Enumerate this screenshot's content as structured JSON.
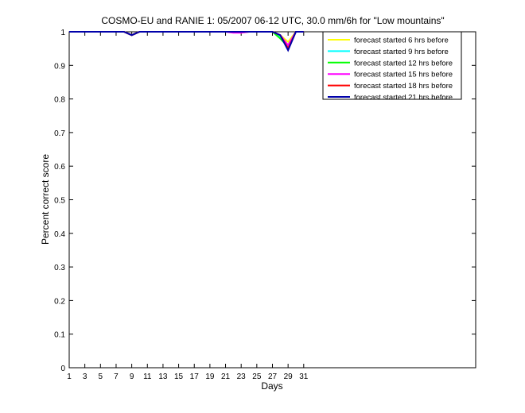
{
  "chart_data": {
    "type": "line",
    "title": "COSMO-EU and RANIE 1: 05/2007 06-12 UTC, 30.0 mm/6h for \"Low mountains\"",
    "xlabel": "Days",
    "ylabel": "Percent correct score",
    "xlim": [
      1,
      53
    ],
    "ylim": [
      0,
      1
    ],
    "xticks": [
      1,
      3,
      5,
      7,
      9,
      11,
      13,
      15,
      17,
      19,
      21,
      23,
      25,
      27,
      29,
      31
    ],
    "yticks": [
      0,
      0.1,
      0.2,
      0.3,
      0.4,
      0.5,
      0.6,
      0.7,
      0.8,
      0.9,
      1
    ],
    "grid": false,
    "legend_position": "top-right",
    "x": [
      1,
      2,
      3,
      4,
      5,
      6,
      7,
      8,
      9,
      10,
      11,
      12,
      13,
      14,
      15,
      16,
      17,
      18,
      19,
      20,
      21,
      22,
      23,
      24,
      25,
      26,
      27,
      28,
      29,
      30,
      31
    ],
    "series": [
      {
        "name": "forecast started 6 hrs before",
        "color": "#ffff00",
        "values": [
          1,
          1,
          1,
          1,
          1,
          1,
          1,
          1,
          0.99,
          1,
          1,
          1,
          1,
          1,
          1,
          1,
          1,
          1,
          1,
          1,
          1,
          1,
          0.997,
          1,
          1,
          1,
          1,
          0.99,
          0.97,
          1,
          1
        ]
      },
      {
        "name": "forecast started 9 hrs before",
        "color": "#00ffff",
        "values": [
          1,
          1,
          1,
          1,
          1,
          1,
          1,
          1,
          0.99,
          1,
          1,
          1,
          1,
          1,
          1,
          1,
          1,
          1,
          1,
          1,
          1,
          1,
          1,
          1,
          1,
          1,
          1,
          0.985,
          0.96,
          1,
          1
        ]
      },
      {
        "name": "forecast started 12 hrs before",
        "color": "#00ff00",
        "values": [
          1,
          1,
          1,
          1,
          1,
          1,
          1,
          1,
          0.99,
          1,
          1,
          1,
          1,
          1,
          1,
          1,
          1,
          1,
          1,
          1,
          1,
          1,
          1,
          1,
          1,
          1,
          1,
          0.98,
          0.955,
          1,
          1
        ]
      },
      {
        "name": "forecast started 15 hrs before",
        "color": "#ff00ff",
        "values": [
          1,
          1,
          1,
          1,
          1,
          1,
          1,
          1,
          0.99,
          1,
          1,
          1,
          1,
          1,
          1,
          1,
          1,
          1,
          1,
          1,
          1,
          0.997,
          0.997,
          1,
          1,
          1,
          1,
          0.99,
          0.96,
          1,
          1
        ]
      },
      {
        "name": "forecast started 18 hrs before",
        "color": "#ff0000",
        "values": [
          1,
          1,
          1,
          1,
          1,
          1,
          1,
          1,
          0.99,
          1,
          1,
          1,
          1,
          1,
          1,
          1,
          1,
          1,
          1,
          1,
          1,
          1,
          1,
          1,
          1,
          1,
          1,
          0.99,
          0.95,
          1,
          1
        ]
      },
      {
        "name": "forecast started 21 hrs before",
        "color": "#0000aa",
        "values": [
          1,
          1,
          1,
          1,
          1,
          1,
          1,
          1,
          0.99,
          1,
          1,
          1,
          1,
          1,
          1,
          1,
          1,
          1,
          1,
          1,
          1,
          1,
          1,
          1,
          1,
          1,
          1,
          0.99,
          0.945,
          1,
          1
        ]
      }
    ]
  }
}
